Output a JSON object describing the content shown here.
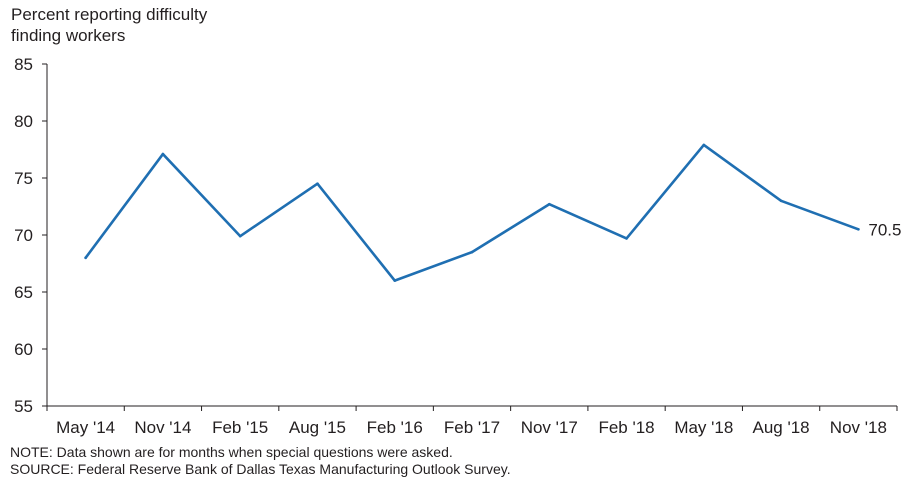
{
  "chart_data": {
    "type": "line",
    "ylabel": "Percent reporting difficulty\nfinding workers",
    "categories": [
      "May '14",
      "Nov '14",
      "Feb '15",
      "Aug '15",
      "Feb '16",
      "Feb '17",
      "Nov '17",
      "Feb '18",
      "May '18",
      "Aug '18",
      "Nov '18"
    ],
    "series": [
      {
        "values": [
          68.0,
          77.1,
          69.9,
          74.5,
          66.0,
          68.5,
          72.7,
          69.7,
          77.9,
          73.0,
          70.5
        ],
        "color": "#1f6fb2"
      }
    ],
    "ylim": [
      55,
      85
    ],
    "yticks": [
      55,
      60,
      65,
      70,
      75,
      80,
      85
    ],
    "end_label": "70.5",
    "grid": false
  },
  "notes": {
    "note": "NOTE: Data shown are for months when special questions were asked.",
    "source": "SOURCE: Federal Reserve Bank of Dallas Texas Manufacturing Outlook Survey."
  }
}
